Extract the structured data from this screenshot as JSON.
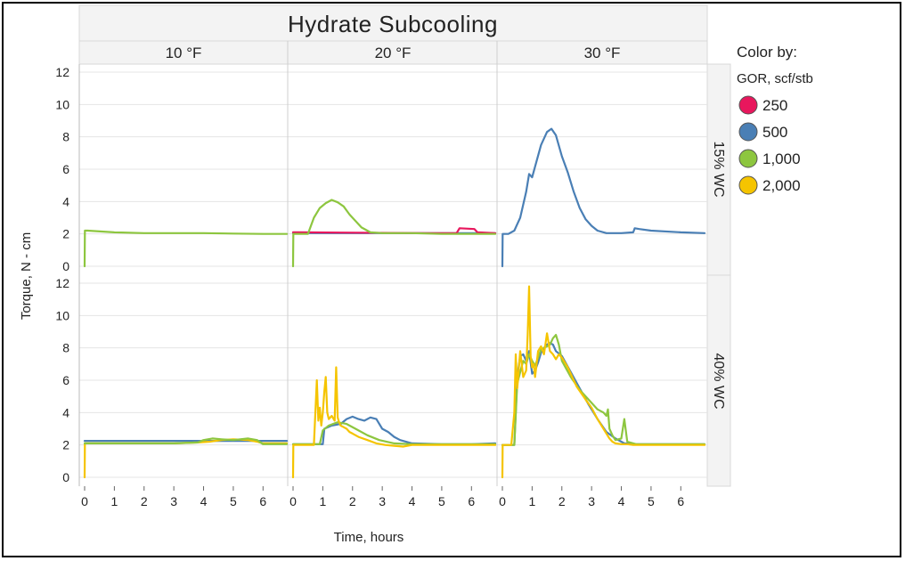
{
  "chart_data": {
    "type": "line",
    "title": "Hydrate Subcooling",
    "xlabel": "Time, hours",
    "ylabel": "Torque, N - cm",
    "xlim": [
      0,
      6.8
    ],
    "ylim": [
      0,
      12
    ],
    "xticks": [
      0,
      1,
      2,
      3,
      4,
      5,
      6
    ],
    "yticks": [
      0,
      2,
      4,
      6,
      8,
      10,
      12
    ],
    "columns": [
      "10 °F",
      "20 °F",
      "30 °F"
    ],
    "rows": [
      "15% WC",
      "40% WC"
    ],
    "legend": {
      "title": "Color by:",
      "subtitle": "GOR, scf/stb",
      "items": [
        {
          "label": "250",
          "color": "#e8175d"
        },
        {
          "label": "500",
          "color": "#4a7fb5"
        },
        {
          "label": "1,000",
          "color": "#8dc63f"
        },
        {
          "label": "2,000",
          "color": "#f5c400"
        }
      ]
    },
    "panels": [
      {
        "row": 0,
        "col": 0,
        "series": [
          {
            "name": "1,000",
            "x": [
              0,
              0.01,
              0.1,
              1,
              2,
              3,
              4,
              5,
              6,
              6.8
            ],
            "y": [
              0,
              2.2,
              2.2,
              2.1,
              2.05,
              2.05,
              2.05,
              2.02,
              2.0,
              2.0
            ]
          }
        ]
      },
      {
        "row": 0,
        "col": 1,
        "series": [
          {
            "name": "500",
            "x": [
              0,
              0.5,
              1,
              2,
              3,
              4,
              5,
              6,
              6.8
            ],
            "y": [
              2.05,
              2.05,
              2.05,
              2.05,
              2.05,
              2.05,
              2.05,
              2.05,
              2.05
            ]
          },
          {
            "name": "250",
            "x": [
              0,
              0.2,
              4.5,
              5.5,
              5.6,
              6.1,
              6.2,
              6.8
            ],
            "y": [
              2.1,
              2.1,
              2.05,
              2.05,
              2.35,
              2.3,
              2.1,
              2.05
            ]
          },
          {
            "name": "1,000",
            "x": [
              0,
              0.01,
              0.3,
              0.5,
              0.7,
              0.9,
              1.1,
              1.3,
              1.5,
              1.7,
              1.9,
              2.1,
              2.3,
              2.6,
              3.0,
              4,
              5,
              6,
              6.8
            ],
            "y": [
              0,
              2.0,
              2.0,
              2.0,
              3.0,
              3.6,
              3.9,
              4.1,
              3.95,
              3.7,
              3.2,
              2.8,
              2.4,
              2.1,
              2.05,
              2.05,
              2.0,
              2.0,
              2.0
            ]
          }
        ]
      },
      {
        "row": 0,
        "col": 2,
        "series": [
          {
            "name": "500",
            "x": [
              0,
              0.01,
              0.2,
              0.4,
              0.6,
              0.8,
              0.9,
              1.0,
              1.15,
              1.3,
              1.5,
              1.65,
              1.8,
              2.0,
              2.2,
              2.4,
              2.6,
              2.8,
              3.0,
              3.2,
              3.5,
              4.0,
              4.4,
              4.45,
              4.6,
              5,
              6,
              6.8
            ],
            "y": [
              0,
              2.0,
              2.0,
              2.2,
              3.0,
              4.6,
              5.7,
              5.5,
              6.5,
              7.5,
              8.3,
              8.5,
              8.1,
              6.8,
              5.8,
              4.6,
              3.6,
              2.9,
              2.5,
              2.2,
              2.05,
              2.05,
              2.1,
              2.35,
              2.3,
              2.2,
              2.1,
              2.05
            ]
          }
        ]
      },
      {
        "row": 1,
        "col": 0,
        "series": [
          {
            "name": "500",
            "x": [
              0,
              1,
              2,
              3,
              4,
              5,
              6,
              6.8
            ],
            "y": [
              2.25,
              2.25,
              2.25,
              2.25,
              2.25,
              2.25,
              2.25,
              2.25
            ]
          },
          {
            "name": "2,000",
            "x": [
              0,
              0.01,
              0.1,
              1,
              2,
              3,
              3.8,
              4.2,
              4.6,
              5.0,
              5.5,
              5.8,
              6.0,
              6.8
            ],
            "y": [
              0,
              2.1,
              2.1,
              2.1,
              2.1,
              2.1,
              2.15,
              2.2,
              2.3,
              2.35,
              2.3,
              2.2,
              2.1,
              2.1
            ]
          },
          {
            "name": "1,000",
            "x": [
              0,
              1,
              2,
              3,
              3.8,
              4.0,
              4.3,
              4.6,
              5.0,
              5.5,
              5.8,
              6.0,
              6.8
            ],
            "y": [
              2.1,
              2.1,
              2.1,
              2.1,
              2.15,
              2.3,
              2.4,
              2.35,
              2.3,
              2.4,
              2.3,
              2.05,
              2.05
            ]
          }
        ]
      },
      {
        "row": 1,
        "col": 1,
        "series": [
          {
            "name": "500",
            "x": [
              0,
              0.5,
              1.0,
              1.05,
              1.3,
              1.6,
              1.8,
              2.0,
              2.2,
              2.4,
              2.6,
              2.8,
              3.0,
              3.2,
              3.4,
              3.6,
              4.0,
              5,
              6,
              6.8
            ],
            "y": [
              2.05,
              2.05,
              2.05,
              3.0,
              3.2,
              3.3,
              3.6,
              3.75,
              3.6,
              3.5,
              3.7,
              3.6,
              3.0,
              2.8,
              2.5,
              2.3,
              2.1,
              2.05,
              2.05,
              2.1
            ]
          },
          {
            "name": "1,000",
            "x": [
              0,
              0.9,
              1.0,
              1.2,
              1.5,
              1.8,
              2.1,
              2.5,
              2.9,
              3.4,
              4.0,
              5,
              6,
              6.8
            ],
            "y": [
              2.05,
              2.05,
              2.9,
              3.2,
              3.4,
              3.3,
              3.0,
              2.6,
              2.3,
              2.1,
              2.05,
              2.05,
              2.05,
              2.05
            ]
          },
          {
            "name": "2,000",
            "x": [
              0,
              0.01,
              0.3,
              0.7,
              0.8,
              0.85,
              0.9,
              0.95,
              1.0,
              1.05,
              1.1,
              1.15,
              1.2,
              1.3,
              1.4,
              1.45,
              1.5,
              1.55,
              1.6,
              1.7,
              1.8,
              1.9,
              2.0,
              2.2,
              2.5,
              2.8,
              3.1,
              3.4,
              3.7,
              4.0,
              5,
              6,
              6.8
            ],
            "y": [
              0,
              2.0,
              2.0,
              2.0,
              6.0,
              3.5,
              4.3,
              3.2,
              4.0,
              5.3,
              6.2,
              4.0,
              3.6,
              3.8,
              3.5,
              6.8,
              3.7,
              3.4,
              3.2,
              3.1,
              3.0,
              2.8,
              2.7,
              2.5,
              2.3,
              2.1,
              2.0,
              1.95,
              1.9,
              2.0,
              2.0,
              2.0,
              2.0
            ]
          }
        ]
      },
      {
        "row": 1,
        "col": 2,
        "series": [
          {
            "name": "500",
            "x": [
              0,
              0.4,
              0.5,
              0.6,
              0.7,
              0.8,
              0.9,
              1.0,
              1.1,
              1.2,
              1.3,
              1.4,
              1.5,
              1.6,
              1.7,
              1.8,
              2.0,
              2.3,
              2.6,
              2.9,
              3.2,
              3.5,
              3.8,
              4.1,
              4.5,
              5,
              6,
              6.8
            ],
            "y": [
              2.0,
              2.0,
              6.2,
              7.5,
              7.6,
              7.2,
              7.8,
              6.4,
              6.6,
              7.1,
              7.7,
              8.0,
              8.2,
              8.3,
              8.2,
              7.8,
              7.5,
              6.5,
              5.5,
              4.5,
              3.6,
              2.8,
              2.4,
              2.1,
              2.05,
              2.05,
              2.05,
              2.05
            ]
          },
          {
            "name": "1,000",
            "x": [
              0,
              0.4,
              0.5,
              0.6,
              0.7,
              0.8,
              0.9,
              1.0,
              1.1,
              1.2,
              1.3,
              1.4,
              1.5,
              1.6,
              1.7,
              1.8,
              1.9,
              2.0,
              2.3,
              2.6,
              2.9,
              3.2,
              3.4,
              3.5,
              3.55,
              3.6,
              3.7,
              3.8,
              4.0,
              4.1,
              4.2,
              4.5,
              5,
              6,
              6.8
            ],
            "y": [
              2.0,
              2.0,
              5.8,
              6.5,
              7.2,
              7.0,
              7.6,
              7.2,
              6.9,
              7.4,
              7.9,
              8.0,
              8.1,
              8.2,
              8.6,
              8.8,
              8.2,
              7.2,
              6.2,
              5.4,
              4.8,
              4.2,
              4.0,
              3.8,
              4.2,
              3.0,
              2.6,
              2.3,
              2.4,
              3.6,
              2.2,
              2.05,
              2.05,
              2.05,
              2.05
            ]
          },
          {
            "name": "2,000",
            "x": [
              0,
              0.01,
              0.3,
              0.4,
              0.45,
              0.5,
              0.6,
              0.7,
              0.8,
              0.85,
              0.9,
              0.95,
              1.0,
              1.05,
              1.1,
              1.2,
              1.3,
              1.4,
              1.5,
              1.6,
              1.7,
              1.8,
              1.9,
              2.0,
              2.2,
              2.5,
              2.8,
              3.0,
              3.2,
              3.4,
              3.6,
              3.7,
              3.8,
              4.0,
              4.2,
              4.4,
              5,
              6,
              6.8
            ],
            "y": [
              0,
              2.0,
              2.0,
              4.0,
              7.6,
              5.5,
              7.8,
              6.2,
              6.6,
              8.8,
              11.8,
              7.5,
              6.8,
              7.0,
              6.2,
              7.8,
              8.1,
              7.6,
              8.9,
              7.8,
              7.6,
              7.3,
              7.6,
              7.4,
              6.8,
              5.6,
              4.8,
              4.3,
              3.6,
              3.0,
              2.4,
              2.2,
              2.1,
              2.05,
              2.05,
              2.0,
              2.0,
              2.0,
              2.0
            ]
          }
        ]
      }
    ]
  }
}
